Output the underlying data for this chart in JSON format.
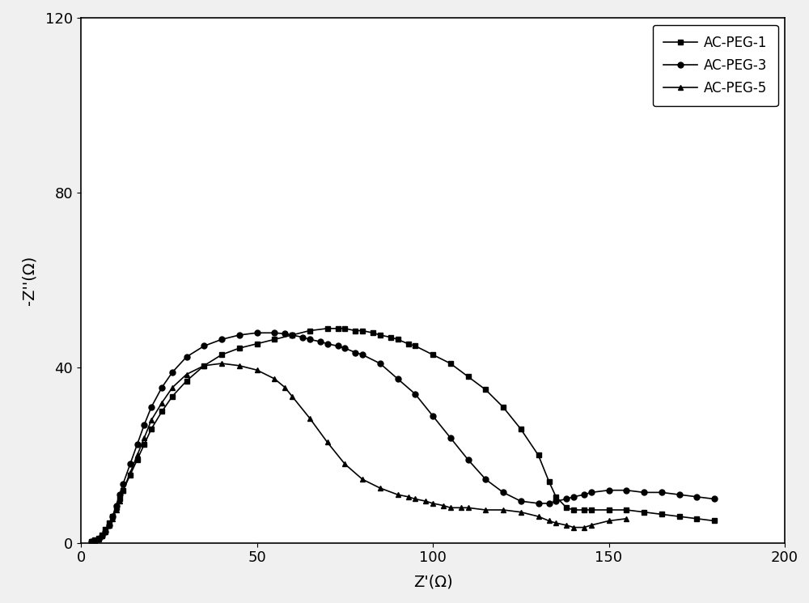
{
  "title": "",
  "xlabel": "Z'(Ω)",
  "ylabel": "-Z''(Ω)",
  "xlim": [
    0,
    200
  ],
  "ylim": [
    0,
    120
  ],
  "xticks": [
    0,
    50,
    100,
    150,
    200
  ],
  "yticks": [
    0,
    40,
    80,
    120
  ],
  "background_color": "#f0f0f0",
  "plot_bg_color": "#ffffff",
  "legend_labels": [
    "AC-PEG-1",
    "AC-PEG-3",
    "AC-PEG-5"
  ],
  "line_color": "#000000",
  "series": {
    "AC-PEG-1": {
      "x": [
        3.0,
        4.0,
        5.0,
        6.0,
        7.0,
        8.0,
        9.0,
        10.0,
        11.0,
        12.0,
        14.0,
        16.0,
        18.0,
        20.0,
        23.0,
        26.0,
        30.0,
        35.0,
        40.0,
        45.0,
        50.0,
        55.0,
        60.0,
        65.0,
        70.0,
        73.0,
        75.0,
        78.0,
        80.0,
        83.0,
        85.0,
        88.0,
        90.0,
        93.0,
        95.0,
        100.0,
        105.0,
        110.0,
        115.0,
        120.0,
        125.0,
        130.0,
        133.0,
        135.0,
        138.0,
        140.0,
        143.0,
        145.0,
        150.0,
        155.0,
        160.0,
        165.0,
        170.0,
        175.0,
        180.0
      ],
      "y": [
        0.3,
        0.6,
        1.0,
        1.8,
        3.0,
        4.5,
        6.0,
        8.0,
        10.0,
        12.0,
        15.5,
        19.0,
        22.5,
        26.0,
        30.0,
        33.5,
        37.0,
        40.5,
        43.0,
        44.5,
        45.5,
        46.5,
        47.5,
        48.5,
        49.0,
        49.0,
        49.0,
        48.5,
        48.5,
        48.0,
        47.5,
        47.0,
        46.5,
        45.5,
        45.0,
        43.0,
        41.0,
        38.0,
        35.0,
        31.0,
        26.0,
        20.0,
        14.0,
        10.5,
        8.0,
        7.5,
        7.5,
        7.5,
        7.5,
        7.5,
        7.0,
        6.5,
        6.0,
        5.5,
        5.0
      ],
      "marker": "s"
    },
    "AC-PEG-3": {
      "x": [
        3.0,
        4.0,
        5.0,
        6.0,
        7.0,
        8.0,
        9.0,
        10.0,
        11.0,
        12.0,
        14.0,
        16.0,
        18.0,
        20.0,
        23.0,
        26.0,
        30.0,
        35.0,
        40.0,
        45.0,
        50.0,
        55.0,
        58.0,
        60.0,
        63.0,
        65.0,
        68.0,
        70.0,
        73.0,
        75.0,
        78.0,
        80.0,
        85.0,
        90.0,
        95.0,
        100.0,
        105.0,
        110.0,
        115.0,
        120.0,
        125.0,
        130.0,
        133.0,
        135.0,
        138.0,
        140.0,
        143.0,
        145.0,
        150.0,
        155.0,
        160.0,
        165.0,
        170.0,
        175.0,
        180.0
      ],
      "y": [
        0.2,
        0.5,
        0.9,
        1.5,
        2.5,
        4.0,
        6.0,
        8.5,
        11.0,
        13.5,
        18.0,
        22.5,
        27.0,
        31.0,
        35.5,
        39.0,
        42.5,
        45.0,
        46.5,
        47.5,
        48.0,
        48.0,
        47.8,
        47.5,
        47.0,
        46.5,
        46.0,
        45.5,
        45.0,
        44.5,
        43.5,
        43.0,
        41.0,
        37.5,
        34.0,
        29.0,
        24.0,
        19.0,
        14.5,
        11.5,
        9.5,
        9.0,
        9.0,
        9.5,
        10.0,
        10.5,
        11.0,
        11.5,
        12.0,
        12.0,
        11.5,
        11.5,
        11.0,
        10.5,
        10.0
      ],
      "marker": "o"
    },
    "AC-PEG-5": {
      "x": [
        3.0,
        4.0,
        5.0,
        6.0,
        7.0,
        8.0,
        9.0,
        10.0,
        11.0,
        12.0,
        14.0,
        16.0,
        18.0,
        20.0,
        23.0,
        26.0,
        30.0,
        35.0,
        40.0,
        45.0,
        50.0,
        55.0,
        58.0,
        60.0,
        65.0,
        70.0,
        75.0,
        80.0,
        85.0,
        90.0,
        93.0,
        95.0,
        98.0,
        100.0,
        103.0,
        105.0,
        108.0,
        110.0,
        115.0,
        120.0,
        125.0,
        130.0,
        133.0,
        135.0,
        138.0,
        140.0,
        143.0,
        145.0,
        150.0,
        155.0
      ],
      "y": [
        0.2,
        0.4,
        0.8,
        1.5,
        2.5,
        4.0,
        5.5,
        7.5,
        9.5,
        12.0,
        16.0,
        20.0,
        24.0,
        28.0,
        32.0,
        35.5,
        38.5,
        40.5,
        41.0,
        40.5,
        39.5,
        37.5,
        35.5,
        33.5,
        28.5,
        23.0,
        18.0,
        14.5,
        12.5,
        11.0,
        10.5,
        10.0,
        9.5,
        9.0,
        8.5,
        8.0,
        8.0,
        8.0,
        7.5,
        7.5,
        7.0,
        6.0,
        5.0,
        4.5,
        4.0,
        3.5,
        3.5,
        4.0,
        5.0,
        5.5
      ],
      "marker": "^"
    }
  }
}
